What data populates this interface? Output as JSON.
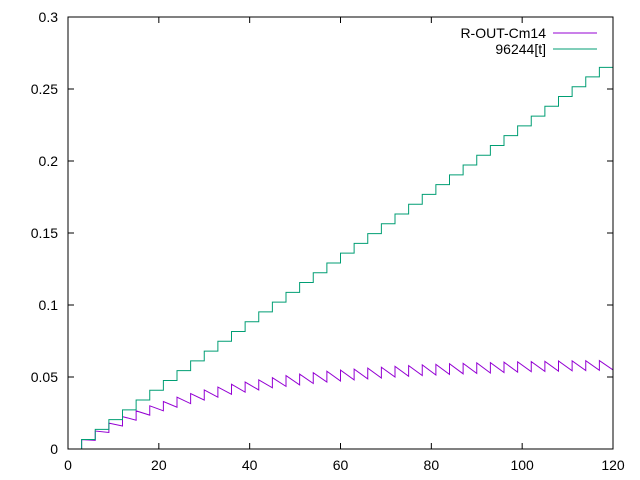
{
  "chart_data": {
    "type": "line",
    "title": "",
    "xlabel": "",
    "ylabel": "",
    "xlim": [
      0,
      120
    ],
    "ylim": [
      0,
      0.3
    ],
    "xticks": [
      "0",
      "20",
      "40",
      "60",
      "80",
      "100",
      "120"
    ],
    "yticks": [
      "0",
      "0.05",
      "0.1",
      "0.15",
      "0.2",
      "0.25",
      "0.3"
    ],
    "grid": false,
    "legend_position": "top-right",
    "dose_interval": 3,
    "series": [
      {
        "name": "R-OUT-Cm14",
        "color": "#9400d3",
        "style": "sawtooth",
        "x": [
          3,
          6,
          9,
          12,
          15,
          18,
          21,
          24,
          27,
          30,
          33,
          36,
          39,
          42,
          45,
          48,
          51,
          54,
          57,
          60,
          63,
          66,
          69,
          72,
          75,
          78,
          81,
          84,
          87,
          90,
          93,
          96,
          99,
          102,
          105,
          108,
          111,
          114,
          117,
          120
        ],
        "peak": [
          0.0065,
          0.0125,
          0.018,
          0.0225,
          0.0265,
          0.03,
          0.033,
          0.036,
          0.0385,
          0.041,
          0.043,
          0.045,
          0.0465,
          0.048,
          0.0495,
          0.051,
          0.052,
          0.053,
          0.054,
          0.0548,
          0.0555,
          0.0562,
          0.0568,
          0.0574,
          0.0579,
          0.0584,
          0.0588,
          0.0592,
          0.0595,
          0.0598,
          0.06,
          0.0603,
          0.0605,
          0.0607,
          0.0609,
          0.0611,
          0.0612,
          0.0613,
          0.0614,
          0.0615
        ],
        "trough": [
          0.006,
          0.0115,
          0.016,
          0.02,
          0.0235,
          0.0265,
          0.029,
          0.0315,
          0.034,
          0.036,
          0.038,
          0.0395,
          0.041,
          0.0425,
          0.0435,
          0.0445,
          0.0455,
          0.0465,
          0.0472,
          0.048,
          0.0487,
          0.0493,
          0.05,
          0.0505,
          0.051,
          0.0514,
          0.0518,
          0.0522,
          0.0525,
          0.0528,
          0.0531,
          0.0534,
          0.0537,
          0.0539,
          0.0541,
          0.0543,
          0.0545,
          0.0547,
          0.0549,
          0.0551
        ]
      },
      {
        "name": "96244[t]",
        "color": "#009e73",
        "style": "step",
        "x": [
          3,
          6,
          9,
          12,
          15,
          18,
          21,
          24,
          27,
          30,
          33,
          36,
          39,
          42,
          45,
          48,
          51,
          54,
          57,
          60,
          63,
          66,
          69,
          72,
          75,
          78,
          81,
          84,
          87,
          90,
          93,
          96,
          99,
          102,
          105,
          108,
          111,
          114,
          117
        ],
        "values": [
          0.0066,
          0.0136,
          0.0204,
          0.0272,
          0.034,
          0.0408,
          0.0476,
          0.0544,
          0.0612,
          0.068,
          0.0748,
          0.0816,
          0.0884,
          0.0952,
          0.102,
          0.1088,
          0.1156,
          0.1224,
          0.1292,
          0.136,
          0.1428,
          0.1496,
          0.1564,
          0.1632,
          0.17,
          0.1768,
          0.1836,
          0.1904,
          0.1972,
          0.204,
          0.2108,
          0.2176,
          0.2244,
          0.2312,
          0.238,
          0.2448,
          0.2516,
          0.2584,
          0.265
        ]
      }
    ]
  }
}
